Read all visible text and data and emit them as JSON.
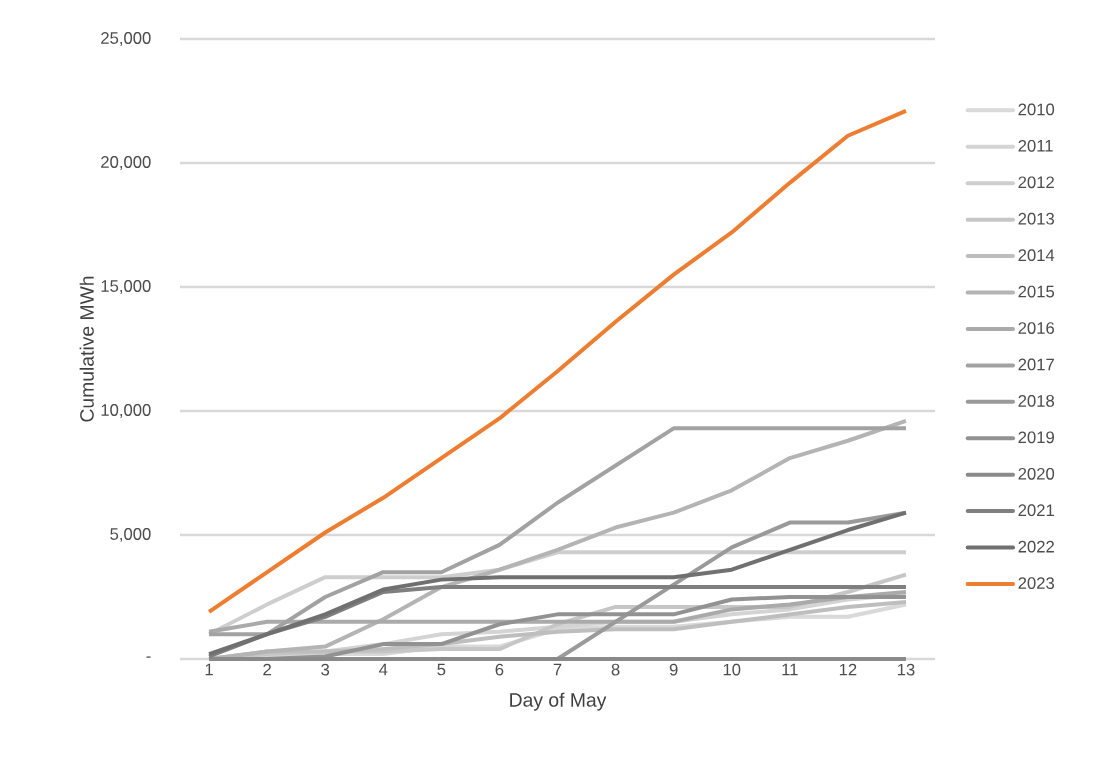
{
  "chart_data": {
    "type": "line",
    "xlabel": "Day of May",
    "ylabel": "Cumulative MWh",
    "categories": [
      "1",
      "2",
      "3",
      "4",
      "5",
      "6",
      "7",
      "8",
      "9",
      "10",
      "11",
      "12",
      "13"
    ],
    "ylim": [
      0,
      25000
    ],
    "yticks": [
      {
        "value": 0,
        "label": "-"
      },
      {
        "value": 5000,
        "label": "5,000"
      },
      {
        "value": 10000,
        "label": "10,000"
      },
      {
        "value": 15000,
        "label": "15,000"
      },
      {
        "value": 20000,
        "label": "20,000"
      },
      {
        "value": 25000,
        "label": "25,000"
      }
    ],
    "grid": "y",
    "legend": "right",
    "marker": "none",
    "line_style": "solid",
    "series": [
      {
        "name": "2010",
        "color": "#d9d9d9",
        "values": [
          0,
          0,
          200,
          200,
          500,
          500,
          1200,
          1300,
          1300,
          1500,
          1700,
          1700,
          2200
        ]
      },
      {
        "name": "2011",
        "color": "#d4d4d4",
        "values": [
          0,
          100,
          300,
          600,
          1000,
          1100,
          1300,
          1500,
          1500,
          1800,
          2000,
          2400,
          2600
        ]
      },
      {
        "name": "2012",
        "color": "#cecece",
        "values": [
          1000,
          2200,
          3300,
          3300,
          3300,
          3600,
          4300,
          4300,
          4300,
          4300,
          4300,
          4300,
          4300
        ]
      },
      {
        "name": "2013",
        "color": "#c6c6c6",
        "values": [
          0,
          200,
          300,
          300,
          400,
          400,
          1400,
          2100,
          2100,
          2100,
          2100,
          2700,
          3400
        ]
      },
      {
        "name": "2014",
        "color": "#bebebe",
        "values": [
          0,
          300,
          300,
          400,
          600,
          900,
          1100,
          1200,
          1200,
          1500,
          1800,
          2100,
          2300
        ]
      },
      {
        "name": "2015",
        "color": "#b4b4b4",
        "values": [
          0,
          300,
          500,
          1600,
          2900,
          3600,
          4400,
          5300,
          5900,
          6800,
          8100,
          8800,
          9600
        ]
      },
      {
        "name": "2016",
        "color": "#aaaaaa",
        "values": [
          1100,
          1500,
          1500,
          1500,
          1500,
          1500,
          1500,
          1500,
          1500,
          2000,
          2200,
          2500,
          2700
        ]
      },
      {
        "name": "2017",
        "color": "#a2a2a2",
        "values": [
          1000,
          1000,
          2500,
          3500,
          3500,
          4600,
          6300,
          7800,
          9300,
          9300,
          9300,
          9300,
          9300
        ]
      },
      {
        "name": "2018",
        "color": "#9a9a9a",
        "values": [
          0,
          0,
          0,
          0,
          0,
          0,
          0,
          1500,
          3000,
          4500,
          5500,
          5500,
          5900
        ]
      },
      {
        "name": "2019",
        "color": "#929292",
        "values": [
          0,
          0,
          100,
          600,
          600,
          1400,
          1800,
          1800,
          1800,
          2400,
          2500,
          2500,
          2500
        ]
      },
      {
        "name": "2020",
        "color": "#8a8a8a",
        "values": [
          0,
          0,
          0,
          0,
          0,
          0,
          0,
          0,
          0,
          0,
          0,
          0,
          0
        ]
      },
      {
        "name": "2021",
        "color": "#7f7f7f",
        "values": [
          100,
          1000,
          1700,
          2700,
          2900,
          2900,
          2900,
          2900,
          2900,
          2900,
          2900,
          2900,
          2900
        ]
      },
      {
        "name": "2022",
        "color": "#707070",
        "values": [
          200,
          1000,
          1800,
          2800,
          3200,
          3300,
          3300,
          3300,
          3300,
          3600,
          4400,
          5200,
          5900
        ]
      },
      {
        "name": "2023",
        "color": "#ed7d31",
        "values": [
          1900,
          3500,
          5100,
          6500,
          8100,
          9700,
          11600,
          13600,
          15500,
          17200,
          19200,
          21100,
          22100
        ]
      }
    ]
  }
}
